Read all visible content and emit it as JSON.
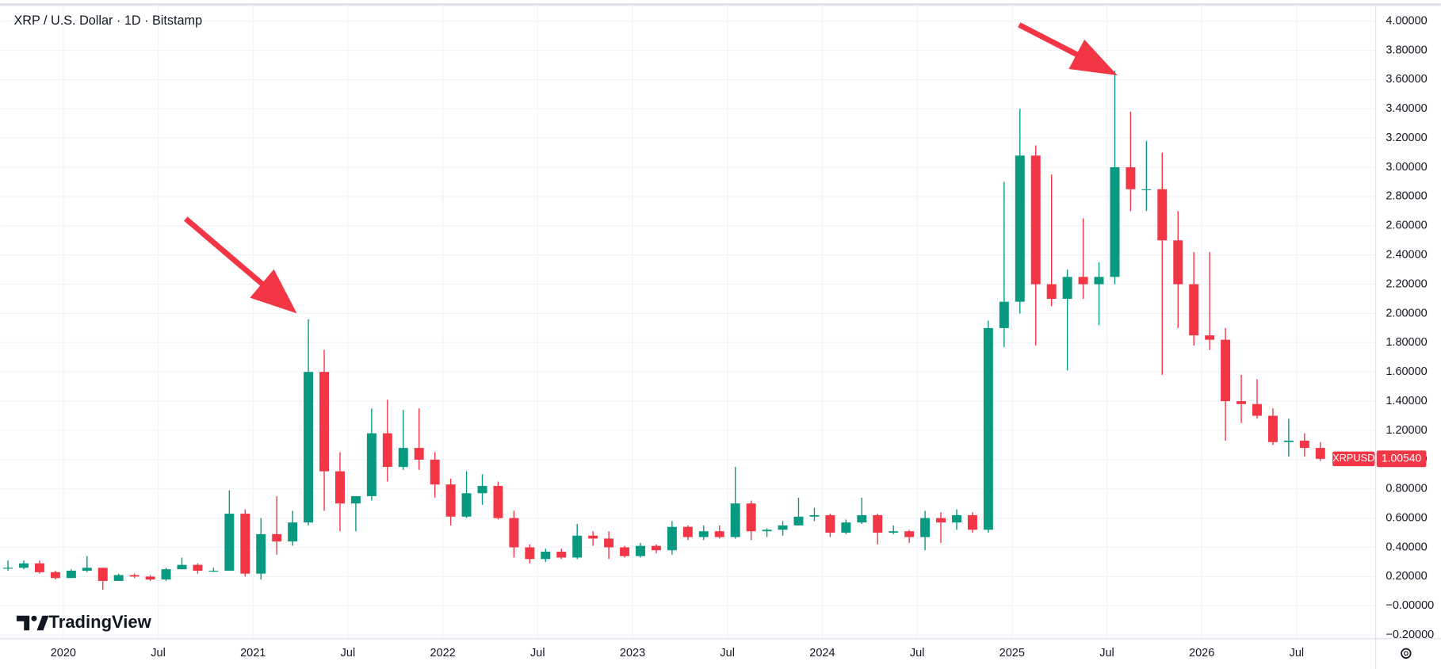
{
  "chart_data": {
    "type": "candlestick",
    "title": "XRP / U.S. Dollar · 1D · Bitstamp",
    "brand": "TradingView",
    "up_color": "#089981",
    "down_color": "#f23645",
    "grid": true,
    "x": [
      "2019-09",
      "2019-10",
      "2019-11",
      "2019-12",
      "2020-01",
      "2020-02",
      "2020-03",
      "2020-04",
      "2020-05",
      "2020-06",
      "2020-07",
      "2020-08",
      "2020-09",
      "2020-10",
      "2020-11",
      "2020-12",
      "2021-01",
      "2021-02",
      "2021-03",
      "2021-04",
      "2021-05",
      "2021-06",
      "2021-07",
      "2021-08",
      "2021-09",
      "2021-10",
      "2021-11",
      "2021-12",
      "2022-01",
      "2022-02",
      "2022-03",
      "2022-04",
      "2022-05",
      "2022-06",
      "2022-07",
      "2022-08",
      "2022-09",
      "2022-10",
      "2022-11",
      "2022-12",
      "2023-01",
      "2023-02",
      "2023-03",
      "2023-04",
      "2023-05",
      "2023-06",
      "2023-07",
      "2023-08",
      "2023-09",
      "2023-10",
      "2023-11",
      "2023-12",
      "2024-01",
      "2024-02",
      "2024-03",
      "2024-04",
      "2024-05",
      "2024-06",
      "2024-07",
      "2024-08",
      "2024-09",
      "2024-10",
      "2024-11",
      "2024-12",
      "2025-01",
      "2025-02",
      "2025-03",
      "2025-04",
      "2025-05",
      "2025-06",
      "2025-07",
      "2025-08",
      "2025-09",
      "2025-10",
      "2025-11",
      "2025-12",
      "2026-01",
      "2026-02",
      "2026-03",
      "2026-04",
      "2026-05",
      "2026-06",
      "2026-07",
      "2026-08"
    ],
    "open": [
      0.26,
      0.26,
      0.29,
      0.23,
      0.19,
      0.24,
      0.26,
      0.17,
      0.21,
      0.2,
      0.18,
      0.25,
      0.28,
      0.24,
      0.24,
      0.63,
      0.22,
      0.49,
      0.44,
      0.57,
      1.6,
      0.92,
      0.7,
      0.75,
      1.18,
      0.95,
      1.08,
      1.0,
      0.83,
      0.61,
      0.77,
      0.82,
      0.6,
      0.4,
      0.32,
      0.37,
      0.33,
      0.48,
      0.46,
      0.4,
      0.34,
      0.41,
      0.38,
      0.54,
      0.47,
      0.51,
      0.47,
      0.7,
      0.51,
      0.52,
      0.55,
      0.61,
      0.62,
      0.5,
      0.57,
      0.62,
      0.5,
      0.51,
      0.47,
      0.6,
      0.57,
      0.62,
      0.52,
      1.9,
      2.08,
      3.08,
      2.2,
      2.1,
      2.25,
      2.2,
      2.25,
      3.0,
      2.85,
      2.85,
      2.5,
      2.2,
      1.85,
      1.82,
      1.4,
      1.38,
      1.3,
      1.12,
      1.13,
      1.08
    ],
    "high": [
      0.31,
      0.31,
      0.31,
      0.24,
      0.25,
      0.34,
      0.26,
      0.22,
      0.22,
      0.21,
      0.26,
      0.33,
      0.29,
      0.26,
      0.79,
      0.66,
      0.6,
      0.75,
      0.65,
      1.96,
      1.75,
      1.05,
      0.75,
      1.35,
      1.41,
      1.34,
      1.35,
      1.05,
      0.87,
      0.92,
      0.9,
      0.85,
      0.65,
      0.42,
      0.39,
      0.39,
      0.56,
      0.51,
      0.51,
      0.41,
      0.43,
      0.42,
      0.58,
      0.55,
      0.55,
      0.55,
      0.95,
      0.72,
      0.53,
      0.58,
      0.74,
      0.67,
      0.63,
      0.59,
      0.74,
      0.63,
      0.55,
      0.52,
      0.65,
      0.64,
      0.66,
      0.64,
      1.95,
      2.9,
      3.4,
      3.15,
      2.95,
      2.3,
      2.65,
      2.35,
      3.66,
      3.38,
      3.18,
      3.1,
      2.7,
      2.42,
      2.42,
      1.9,
      1.58,
      1.55,
      1.35,
      1.28,
      1.18,
      1.12
    ],
    "low": [
      0.24,
      0.25,
      0.22,
      0.18,
      0.19,
      0.23,
      0.11,
      0.17,
      0.19,
      0.17,
      0.17,
      0.25,
      0.22,
      0.23,
      0.24,
      0.2,
      0.18,
      0.35,
      0.41,
      0.55,
      0.65,
      0.51,
      0.51,
      0.72,
      0.85,
      0.93,
      0.93,
      0.74,
      0.55,
      0.6,
      0.69,
      0.59,
      0.33,
      0.29,
      0.3,
      0.32,
      0.32,
      0.41,
      0.32,
      0.33,
      0.33,
      0.36,
      0.35,
      0.45,
      0.45,
      0.46,
      0.46,
      0.45,
      0.47,
      0.48,
      0.55,
      0.58,
      0.47,
      0.49,
      0.56,
      0.42,
      0.49,
      0.43,
      0.38,
      0.43,
      0.52,
      0.5,
      0.5,
      1.77,
      2.0,
      1.78,
      2.05,
      1.61,
      2.1,
      1.92,
      2.2,
      2.7,
      2.7,
      1.58,
      1.9,
      1.78,
      1.75,
      1.13,
      1.25,
      1.28,
      1.1,
      1.02,
      1.02,
      0.99
    ],
    "close": [
      0.26,
      0.29,
      0.23,
      0.19,
      0.24,
      0.26,
      0.17,
      0.21,
      0.2,
      0.18,
      0.25,
      0.28,
      0.24,
      0.24,
      0.63,
      0.22,
      0.49,
      0.44,
      0.57,
      1.6,
      0.92,
      0.7,
      0.75,
      1.18,
      0.95,
      1.08,
      1.0,
      0.83,
      0.61,
      0.77,
      0.82,
      0.6,
      0.4,
      0.32,
      0.37,
      0.33,
      0.48,
      0.46,
      0.4,
      0.34,
      0.41,
      0.38,
      0.54,
      0.47,
      0.51,
      0.47,
      0.7,
      0.51,
      0.52,
      0.55,
      0.61,
      0.62,
      0.5,
      0.57,
      0.62,
      0.5,
      0.51,
      0.47,
      0.6,
      0.57,
      0.62,
      0.52,
      1.9,
      2.08,
      3.08,
      2.2,
      2.1,
      2.25,
      2.2,
      2.25,
      3.0,
      2.85,
      2.85,
      2.5,
      2.2,
      1.85,
      1.82,
      1.4,
      1.38,
      1.3,
      1.12,
      1.13,
      1.08,
      1.0054
    ],
    "xlim": [
      "2019-09",
      "2026-12"
    ],
    "xticks": [
      {
        "value": "2020-01",
        "label": "2020"
      },
      {
        "value": "2020-07",
        "label": "Jul"
      },
      {
        "value": "2021-01",
        "label": "2021"
      },
      {
        "value": "2021-07",
        "label": "Jul"
      },
      {
        "value": "2022-01",
        "label": "2022"
      },
      {
        "value": "2022-07",
        "label": "Jul"
      },
      {
        "value": "2023-01",
        "label": "2023"
      },
      {
        "value": "2023-07",
        "label": "Jul"
      },
      {
        "value": "2024-01",
        "label": "2024"
      },
      {
        "value": "2024-07",
        "label": "Jul"
      },
      {
        "value": "2025-01",
        "label": "2025"
      },
      {
        "value": "2025-07",
        "label": "Jul"
      },
      {
        "value": "2026-01",
        "label": "2026"
      },
      {
        "value": "2026-07",
        "label": "Jul"
      }
    ],
    "ylim": [
      -0.225,
      4.113
    ],
    "yticks": [
      {
        "value": 4,
        "label": "4.00000"
      },
      {
        "value": 3.8,
        "label": "3.80000"
      },
      {
        "value": 3.6,
        "label": "3.60000"
      },
      {
        "value": 3.4,
        "label": "3.40000"
      },
      {
        "value": 3.2,
        "label": "3.20000"
      },
      {
        "value": 3,
        "label": "3.00000"
      },
      {
        "value": 2.8,
        "label": "2.80000"
      },
      {
        "value": 2.6,
        "label": "2.60000"
      },
      {
        "value": 2.4,
        "label": "2.40000"
      },
      {
        "value": 2.2,
        "label": "2.20000"
      },
      {
        "value": 2,
        "label": "2.00000"
      },
      {
        "value": 1.8,
        "label": "1.80000"
      },
      {
        "value": 1.6,
        "label": "1.60000"
      },
      {
        "value": 1.4,
        "label": "1.40000"
      },
      {
        "value": 1.2,
        "label": "1.20000"
      },
      {
        "value": 1,
        "label": "1.00000"
      },
      {
        "value": 0.8,
        "label": "0.80000"
      },
      {
        "value": 0.6,
        "label": "0.60000"
      },
      {
        "value": 0.4,
        "label": "0.40000"
      },
      {
        "value": 0.2,
        "label": "0.20000"
      },
      {
        "value": 0,
        "label": "−0.00000"
      },
      {
        "value": -0.2,
        "label": "−0.20000"
      }
    ],
    "price_tag": {
      "symbol": "XRPUSD",
      "value": 1.0054,
      "label": "1.00540"
    }
  }
}
